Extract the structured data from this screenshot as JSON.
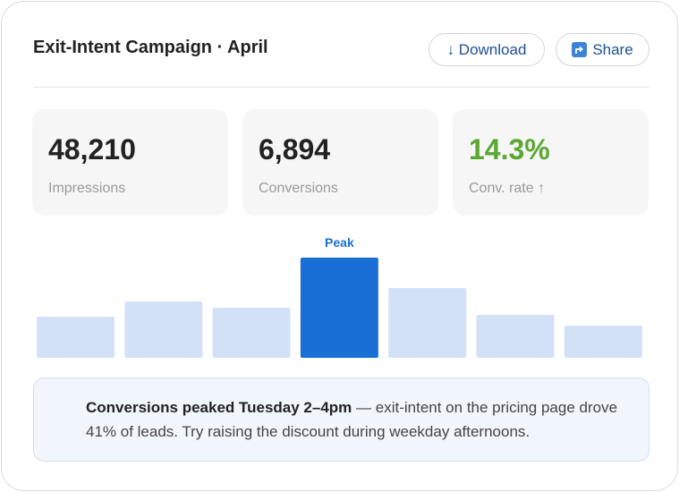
{
  "header": {
    "title": "Exit-Intent Campaign · April",
    "buttons": [
      "↓ Download",
      "Share"
    ]
  },
  "stats": [
    {
      "value": "48,210",
      "label": "Impressions"
    },
    {
      "value": "6,894",
      "label": "Conversions"
    },
    {
      "value": "14.3%",
      "label": "Conv. rate ↑"
    }
  ],
  "chart_data": {
    "type": "bar",
    "categories": [
      null,
      null,
      null,
      null,
      null,
      null,
      null
    ],
    "values": [
      46,
      63,
      56,
      112,
      78,
      48,
      36
    ],
    "ylim": [
      0,
      112
    ],
    "color": "#d3e1f7",
    "highlight_color": "#1a6fd6",
    "annotation": "Peak"
  },
  "insight": {
    "bold": "Conversions peaked Tuesday 2–4pm",
    "text": " — exit-intent on the pricing page drove 41% of leads. Try raising the discount during weekday afternoons."
  }
}
